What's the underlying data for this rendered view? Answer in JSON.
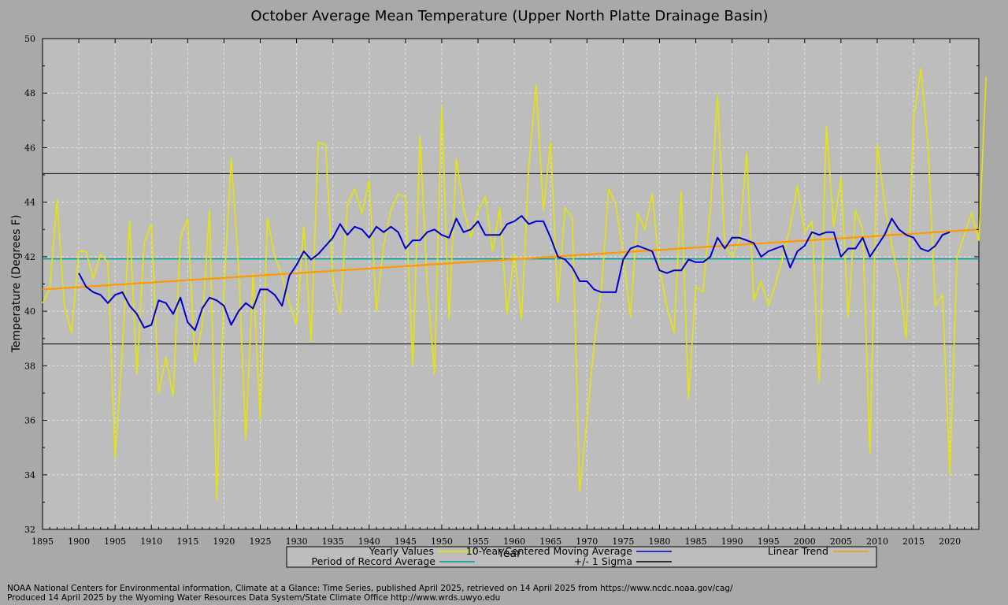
{
  "chart_data": {
    "type": "line",
    "title": "October Average Mean Temperature (Upper North Platte Drainage Basin)",
    "xlabel": "Year",
    "ylabel": "Temperature (Degrees F)",
    "xlim": [
      1895,
      2024
    ],
    "ylim": [
      32,
      50
    ],
    "x_ticks": [
      1895,
      1900,
      1905,
      1910,
      1915,
      1920,
      1925,
      1930,
      1935,
      1940,
      1945,
      1950,
      1955,
      1960,
      1965,
      1970,
      1975,
      1980,
      1985,
      1990,
      1995,
      2000,
      2005,
      2010,
      2015,
      2020
    ],
    "y_ticks": [
      32,
      34,
      36,
      38,
      40,
      42,
      44,
      46,
      48,
      50
    ],
    "grid": true,
    "legend_placement": "bottom",
    "start_year": 1895,
    "series": [
      {
        "name": "Yearly Values",
        "color": "#e6e600",
        "values": [
          40.3,
          40.8,
          44.1,
          40.2,
          39.2,
          42.2,
          42.2,
          41.2,
          42.1,
          41.8,
          34.6,
          38.6,
          43.3,
          37.7,
          42.5,
          43.2,
          37.0,
          38.3,
          36.9,
          42.7,
          43.4,
          38.1,
          39.5,
          43.7,
          33.1,
          40.8,
          45.6,
          41.7,
          35.3,
          41.4,
          36.0,
          43.4,
          42.0,
          41.3,
          40.3,
          39.5,
          43.1,
          38.9,
          46.2,
          46.1,
          41.2,
          39.9,
          43.9,
          44.5,
          43.6,
          44.8,
          40.0,
          42.4,
          43.7,
          44.3,
          44.2,
          38.0,
          46.4,
          41.0,
          37.7,
          47.5,
          39.7,
          45.6,
          43.8,
          42.7,
          43.7,
          44.2,
          42.2,
          43.8,
          39.9,
          42.1,
          39.7,
          45.3,
          48.3,
          43.7,
          46.2,
          40.3,
          43.8,
          43.4,
          33.4,
          36.0,
          38.8,
          40.8,
          44.5,
          43.9,
          42.1,
          39.8,
          43.6,
          43.0,
          44.3,
          41.6,
          40.2,
          39.2,
          44.4,
          36.8,
          40.9,
          40.7,
          43.7,
          47.9,
          42.4,
          42.0,
          42.6,
          45.8,
          40.4,
          41.1,
          40.2,
          41.0,
          42.0,
          43.1,
          44.6,
          42.9,
          43.3,
          37.4,
          46.8,
          43.1,
          44.9,
          39.8,
          43.7,
          43.0,
          34.8,
          46.1,
          44.0,
          42.4,
          41.2,
          39.0,
          47.0,
          48.9,
          46.1,
          40.2,
          40.6,
          34.0,
          42.0,
          42.8,
          43.6,
          42.6,
          48.6
        ]
      },
      {
        "name": "10-Year Centered Moving Average",
        "color": "#0000cc",
        "start_year": 1900,
        "values": [
          41.4,
          40.9,
          40.7,
          40.6,
          40.3,
          40.6,
          40.7,
          40.2,
          39.9,
          39.4,
          39.5,
          40.4,
          40.3,
          39.9,
          40.5,
          39.6,
          39.3,
          40.1,
          40.5,
          40.4,
          40.2,
          39.5,
          40.0,
          40.3,
          40.1,
          40.8,
          40.8,
          40.6,
          40.2,
          41.3,
          41.7,
          42.2,
          41.9,
          42.1,
          42.4,
          42.7,
          43.2,
          42.8,
          43.1,
          43.0,
          42.7,
          43.1,
          42.9,
          43.1,
          42.9,
          42.3,
          42.6,
          42.6,
          42.9,
          43.0,
          42.8,
          42.7,
          43.4,
          42.9,
          43.0,
          43.3,
          42.8,
          42.8,
          42.8,
          43.2,
          43.3,
          43.5,
          43.2,
          43.3,
          43.3,
          42.7,
          42.0,
          41.9,
          41.6,
          41.1,
          41.1,
          40.8,
          40.7,
          40.7,
          40.7,
          41.9,
          42.3,
          42.4,
          42.3,
          42.2,
          41.5,
          41.4,
          41.5,
          41.5,
          41.9,
          41.8,
          41.8,
          42.0,
          42.7,
          42.3,
          42.7,
          42.7,
          42.6,
          42.5,
          42.0,
          42.2,
          42.3,
          42.4,
          41.6,
          42.2,
          42.4,
          42.9,
          42.8,
          42.9,
          42.9,
          42.0,
          42.3,
          42.3,
          42.7,
          42.0,
          42.4,
          42.8,
          43.4,
          43.0,
          42.8,
          42.7,
          42.3,
          42.2,
          42.4,
          42.8,
          42.9
        ]
      },
      {
        "name": "Linear Trend",
        "color": "#ff9900",
        "x": [
          1895,
          2024
        ],
        "values": [
          40.8,
          43.0
        ]
      },
      {
        "name": "Period of Record Average",
        "color": "#009999",
        "value": 41.92
      },
      {
        "name": "+/- 1 Sigma",
        "color": "#000000",
        "values": [
          45.05,
          38.8
        ]
      }
    ]
  },
  "footer": {
    "line1": "NOAA National Centers for Environmental information, Climate at a Glance: Time Series, published April 2025, retrieved on 14 April 2025 from https://www.ncdc.noaa.gov/cag/",
    "line2": "Produced 14 April 2025 by the Wyoming Water Resources Data System/State Climate Office http://www.wrds.uwyo.edu"
  }
}
